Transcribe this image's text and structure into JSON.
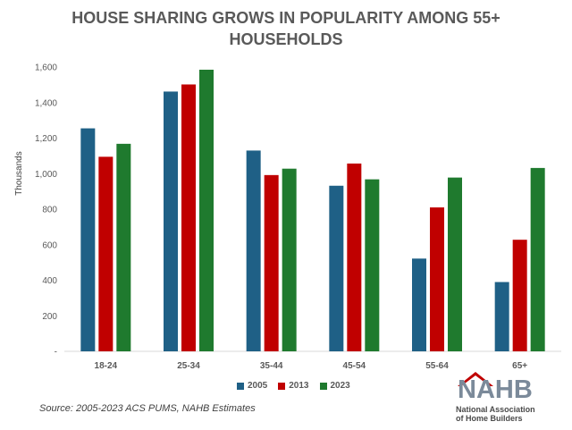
{
  "chart_data": {
    "type": "bar",
    "title_lines": [
      "HOUSE SHARING GROWS IN POPULARITY AMONG 55+",
      "HOUSEHOLDS"
    ],
    "ylabel": "Thousands",
    "xlabel": "",
    "categories": [
      "18-24",
      "25-34",
      "35-44",
      "45-54",
      "55-64",
      "65+"
    ],
    "series": [
      {
        "name": "2005",
        "color": "#1f6086",
        "values": [
          1255,
          1462,
          1130,
          932,
          522,
          390
        ]
      },
      {
        "name": "2013",
        "color": "#c00000",
        "values": [
          1095,
          1502,
          992,
          1057,
          810,
          628
        ]
      },
      {
        "name": "2023",
        "color": "#1f7a2e",
        "values": [
          1168,
          1585,
          1028,
          968,
          978,
          1032
        ]
      }
    ],
    "ylim": [
      0,
      1600
    ],
    "yticks": [
      "-",
      "200",
      "400",
      "600",
      "800",
      "1,000",
      "1,200",
      "1,400",
      "1,600"
    ],
    "grid": false,
    "legend_position": "bottom"
  },
  "source": "Source: 2005-2023 ACS PUMS, NAHB Estimates",
  "logo": {
    "word": "NAHB",
    "line1": "National Association",
    "line2": "of Home Builders",
    "colors": {
      "primary": "#7b8a9a",
      "accent": "#c00000"
    }
  }
}
